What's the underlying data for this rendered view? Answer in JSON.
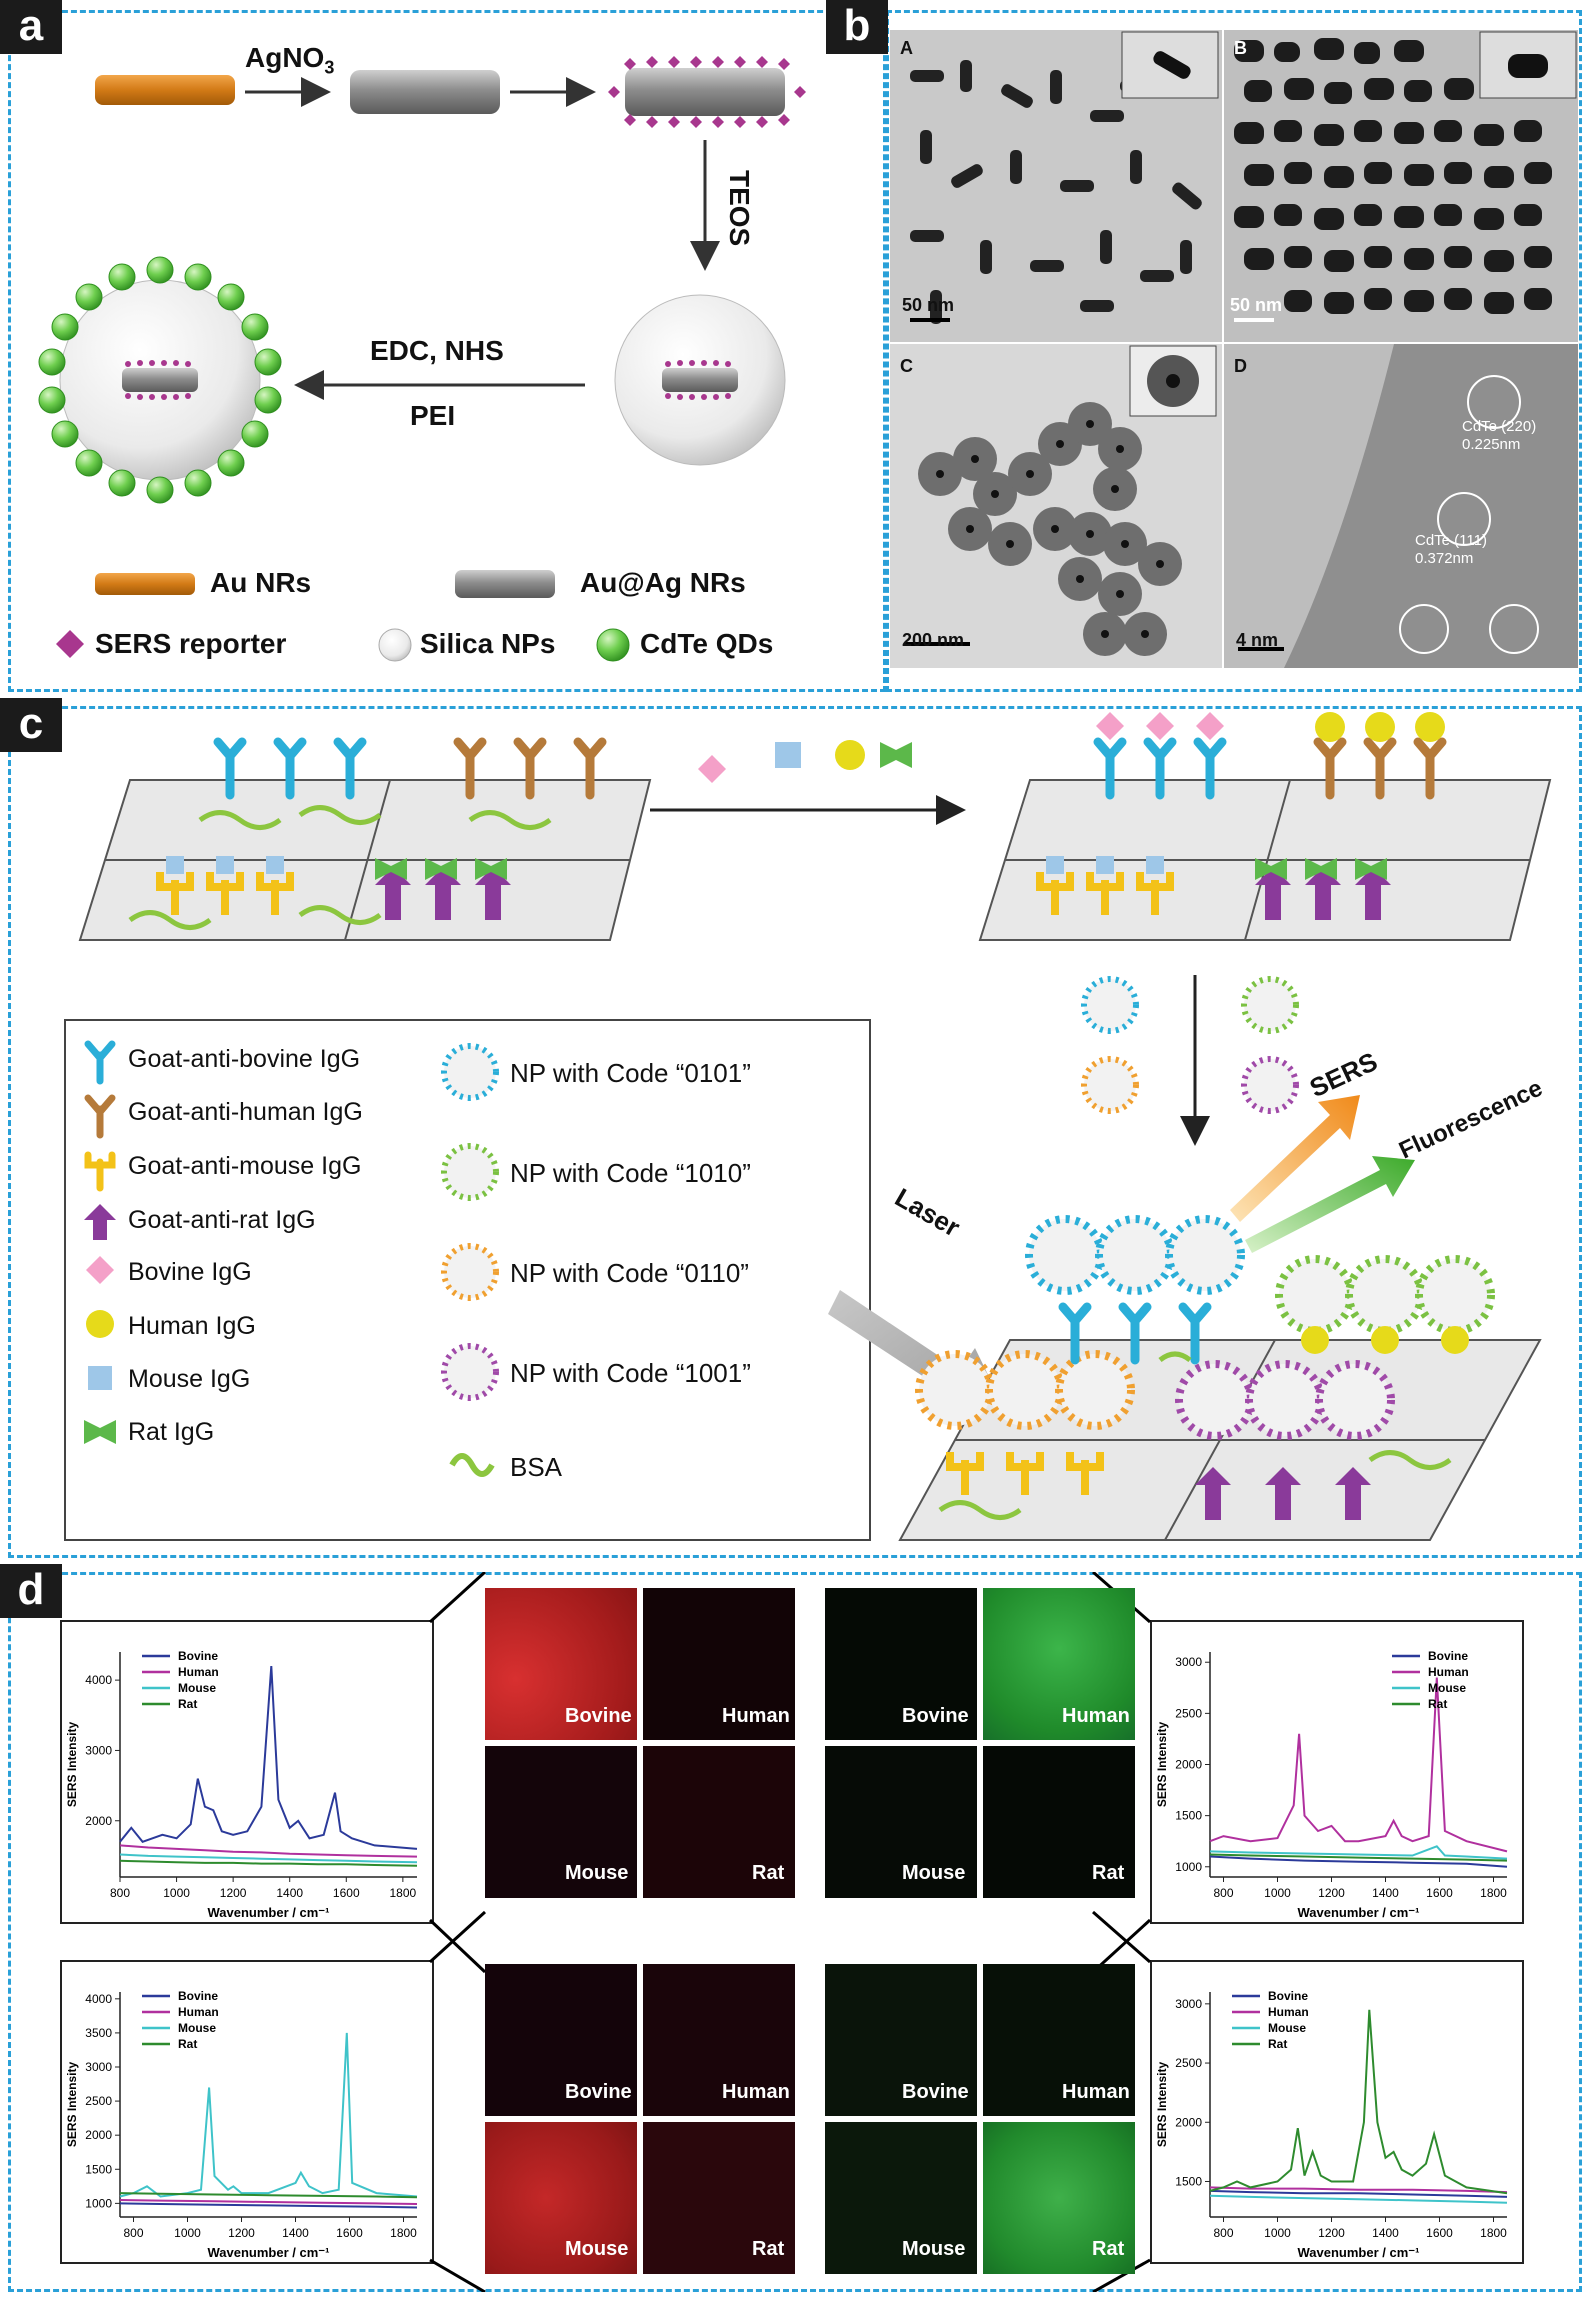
{
  "panel_a": {
    "label": "a",
    "agno3": "AgNO",
    "agno3_sub": "3",
    "teos": "TEOS",
    "edc": "EDC, NHS",
    "pei": "PEI",
    "legend": {
      "au_nrs": "Au NRs",
      "auag_nrs": "Au@Ag NRs",
      "sers_reporter": "SERS reporter",
      "silica": "Silica NPs",
      "cdte": "CdTe QDs"
    }
  },
  "panel_b": {
    "label": "b",
    "images": [
      {
        "tag": "A",
        "scale": "50 nm"
      },
      {
        "tag": "B",
        "scale": "50 nm"
      },
      {
        "tag": "C",
        "scale": "200 nm"
      },
      {
        "tag": "D",
        "scale": "4 nm",
        "ann1": "CdTe (220)",
        "ann1b": "0.225nm",
        "ann2": "CdTe (111)",
        "ann2b": "0.372nm"
      }
    ]
  },
  "panel_c": {
    "label": "c",
    "legend_left": [
      "Goat-anti-bovine IgG",
      "Goat-anti-human IgG",
      "Goat-anti-mouse IgG",
      "Goat-anti-rat IgG",
      "Bovine IgG",
      "Human IgG",
      "Mouse IgG",
      "Rat IgG"
    ],
    "legend_right": [
      "NP with Code “0101”",
      "NP with Code “1010”",
      "NP with Code “0110”",
      "NP with Code “1001”",
      "BSA"
    ],
    "laser": "Laser",
    "sers": "SERS",
    "fluorescence": "Fluorescence"
  },
  "panel_d": {
    "label": "d",
    "fluor_labels": [
      "Bovine",
      "Human",
      "Mouse",
      "Rat"
    ],
    "colors": {
      "bovine": "#2b3a9a",
      "human": "#b0309e",
      "mouse": "#3fc3c9",
      "rat": "#2e8b2e",
      "red": "#c22020",
      "green": "#2ea02e"
    }
  },
  "chart_data": [
    {
      "type": "line",
      "xlabel": "Wavenumber / cm⁻¹",
      "ylabel": "SERS Intensity",
      "xlim": [
        800,
        1850
      ],
      "ylim": [
        1200,
        4400
      ],
      "xticks": [
        800,
        1000,
        1200,
        1400,
        1600,
        1800
      ],
      "yticks": [
        2000,
        3000,
        4000
      ],
      "legend": "top-left",
      "series": [
        {
          "name": "Bovine",
          "color": "#2b3a9a",
          "x": [
            800,
            840,
            880,
            950,
            1000,
            1050,
            1075,
            1100,
            1130,
            1160,
            1200,
            1250,
            1300,
            1335,
            1360,
            1400,
            1430,
            1470,
            1520,
            1560,
            1580,
            1620,
            1700,
            1850
          ],
          "y": [
            1700,
            1900,
            1700,
            1800,
            1750,
            1950,
            2600,
            2200,
            2150,
            1850,
            1800,
            1850,
            2200,
            4200,
            2300,
            1900,
            2000,
            1750,
            1800,
            2400,
            1850,
            1750,
            1650,
            1600
          ]
        },
        {
          "name": "Human",
          "color": "#b0309e",
          "x": [
            800,
            900,
            1000,
            1100,
            1200,
            1300,
            1400,
            1500,
            1600,
            1700,
            1850
          ],
          "y": [
            1650,
            1620,
            1600,
            1580,
            1560,
            1550,
            1530,
            1520,
            1510,
            1500,
            1490
          ]
        },
        {
          "name": "Mouse",
          "color": "#3fc3c9",
          "x": [
            800,
            900,
            1000,
            1100,
            1200,
            1300,
            1400,
            1500,
            1600,
            1700,
            1850
          ],
          "y": [
            1520,
            1500,
            1490,
            1480,
            1470,
            1460,
            1450,
            1440,
            1430,
            1420,
            1410
          ]
        },
        {
          "name": "Rat",
          "color": "#2e8b2e",
          "x": [
            800,
            900,
            1000,
            1100,
            1200,
            1300,
            1400,
            1500,
            1600,
            1700,
            1850
          ],
          "y": [
            1430,
            1420,
            1410,
            1400,
            1400,
            1390,
            1390,
            1380,
            1380,
            1370,
            1360
          ]
        }
      ]
    },
    {
      "type": "line",
      "xlabel": "Wavenumber / cm⁻¹",
      "ylabel": "SERS Intensity",
      "xlim": [
        750,
        1850
      ],
      "ylim": [
        900,
        3100
      ],
      "xticks": [
        800,
        1000,
        1200,
        1400,
        1600,
        1800
      ],
      "yticks": [
        1000,
        1500,
        2000,
        2500,
        3000
      ],
      "legend": "top-right",
      "series": [
        {
          "name": "Bovine",
          "color": "#2b3a9a",
          "x": [
            750,
            900,
            1100,
            1300,
            1500,
            1700,
            1850
          ],
          "y": [
            1100,
            1080,
            1060,
            1050,
            1040,
            1030,
            1000
          ]
        },
        {
          "name": "Human",
          "color": "#b0309e",
          "x": [
            750,
            800,
            900,
            1000,
            1060,
            1080,
            1100,
            1150,
            1200,
            1250,
            1300,
            1400,
            1430,
            1460,
            1500,
            1560,
            1590,
            1620,
            1700,
            1850
          ],
          "y": [
            1250,
            1300,
            1250,
            1280,
            1600,
            2300,
            1500,
            1350,
            1400,
            1250,
            1250,
            1300,
            1450,
            1300,
            1250,
            1300,
            2850,
            1350,
            1250,
            1150
          ]
        },
        {
          "name": "Mouse",
          "color": "#3fc3c9",
          "x": [
            750,
            900,
            1100,
            1300,
            1500,
            1590,
            1620,
            1700,
            1850
          ],
          "y": [
            1150,
            1140,
            1130,
            1120,
            1110,
            1200,
            1110,
            1100,
            1080
          ]
        },
        {
          "name": "Rat",
          "color": "#2e8b2e",
          "x": [
            750,
            900,
            1100,
            1300,
            1500,
            1700,
            1850
          ],
          "y": [
            1120,
            1110,
            1100,
            1090,
            1080,
            1070,
            1060
          ]
        }
      ]
    },
    {
      "type": "line",
      "xlabel": "Wavenumber / cm⁻¹",
      "ylabel": "SERS Intensity",
      "xlim": [
        750,
        1850
      ],
      "ylim": [
        800,
        4100
      ],
      "xticks": [
        800,
        1000,
        1200,
        1400,
        1600,
        1800
      ],
      "yticks": [
        1000,
        1500,
        2000,
        2500,
        3000,
        3500,
        4000
      ],
      "legend": "top-left",
      "series": [
        {
          "name": "Bovine",
          "color": "#2b3a9a",
          "x": [
            750,
            900,
            1100,
            1300,
            1500,
            1700,
            1850
          ],
          "y": [
            1000,
            990,
            980,
            970,
            960,
            950,
            940
          ]
        },
        {
          "name": "Human",
          "color": "#b0309e",
          "x": [
            750,
            900,
            1100,
            1300,
            1500,
            1700,
            1850
          ],
          "y": [
            1050,
            1040,
            1030,
            1020,
            1010,
            1000,
            990
          ]
        },
        {
          "name": "Mouse",
          "color": "#3fc3c9",
          "x": [
            750,
            800,
            850,
            900,
            1000,
            1050,
            1080,
            1100,
            1150,
            1170,
            1200,
            1300,
            1400,
            1420,
            1450,
            1500,
            1560,
            1590,
            1610,
            1700,
            1850
          ],
          "y": [
            1100,
            1150,
            1250,
            1100,
            1150,
            1200,
            2700,
            1400,
            1200,
            1250,
            1150,
            1150,
            1300,
            1450,
            1250,
            1150,
            1200,
            3500,
            1300,
            1150,
            1100
          ]
        },
        {
          "name": "Rat",
          "color": "#2e8b2e",
          "x": [
            750,
            900,
            1100,
            1300,
            1500,
            1700,
            1850
          ],
          "y": [
            1150,
            1140,
            1130,
            1120,
            1110,
            1100,
            1090
          ]
        }
      ]
    },
    {
      "type": "line",
      "xlabel": "Wavenumber / cm⁻¹",
      "ylabel": "SERS Intensity",
      "xlim": [
        750,
        1850
      ],
      "ylim": [
        1200,
        3100
      ],
      "xticks": [
        800,
        1000,
        1200,
        1400,
        1600,
        1800
      ],
      "yticks": [
        1500,
        2000,
        2500,
        3000
      ],
      "legend": "top-left",
      "series": [
        {
          "name": "Bovine",
          "color": "#2b3a9a",
          "x": [
            750,
            900,
            1100,
            1300,
            1500,
            1700,
            1850
          ],
          "y": [
            1420,
            1410,
            1400,
            1400,
            1390,
            1380,
            1370
          ]
        },
        {
          "name": "Human",
          "color": "#b0309e",
          "x": [
            750,
            900,
            1100,
            1300,
            1500,
            1700,
            1850
          ],
          "y": [
            1450,
            1440,
            1440,
            1430,
            1430,
            1420,
            1410
          ]
        },
        {
          "name": "Mouse",
          "color": "#3fc3c9",
          "x": [
            750,
            900,
            1100,
            1300,
            1500,
            1700,
            1850
          ],
          "y": [
            1380,
            1370,
            1360,
            1350,
            1340,
            1330,
            1320
          ]
        },
        {
          "name": "Rat",
          "color": "#2e8b2e",
          "x": [
            750,
            800,
            850,
            900,
            1000,
            1050,
            1075,
            1100,
            1130,
            1160,
            1200,
            1280,
            1320,
            1340,
            1370,
            1400,
            1430,
            1460,
            1500,
            1550,
            1580,
            1620,
            1700,
            1850
          ],
          "y": [
            1420,
            1450,
            1500,
            1450,
            1500,
            1600,
            1950,
            1550,
            1750,
            1550,
            1500,
            1500,
            2000,
            2950,
            2000,
            1700,
            1750,
            1600,
            1550,
            1650,
            1900,
            1550,
            1450,
            1400
          ]
        }
      ]
    }
  ]
}
